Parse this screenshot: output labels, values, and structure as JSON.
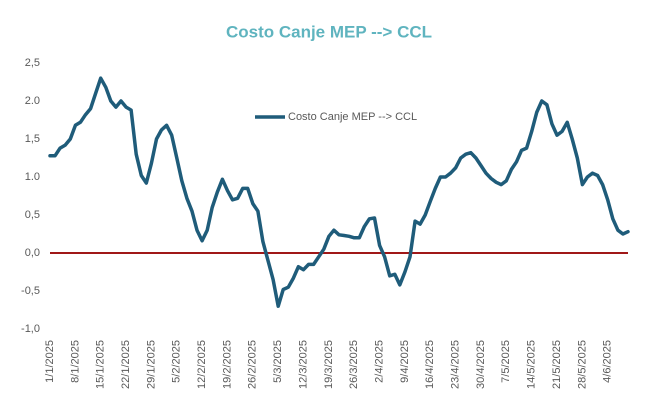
{
  "chart_data": {
    "type": "line",
    "title": "Costo Canje MEP --> CCL",
    "categories": [
      "1/1/2025",
      null,
      null,
      null,
      null,
      "8/1/2025",
      null,
      null,
      null,
      null,
      "15/1/2025",
      null,
      null,
      null,
      null,
      "22/1/2025",
      null,
      null,
      null,
      null,
      "29/1/2025",
      null,
      null,
      null,
      null,
      "5/2/2025",
      null,
      null,
      null,
      null,
      "12/2/2025",
      null,
      null,
      null,
      null,
      "19/2/2025",
      null,
      null,
      null,
      null,
      "26/2/2025",
      null,
      null,
      null,
      null,
      "5/3/2025",
      null,
      null,
      null,
      null,
      "12/3/2025",
      null,
      null,
      null,
      null,
      "19/3/2025",
      null,
      null,
      null,
      null,
      "26/3/2025",
      null,
      null,
      null,
      null,
      "2/4/2025",
      null,
      null,
      null,
      null,
      "9/4/2025",
      null,
      null,
      null,
      null,
      "16/4/2025",
      null,
      null,
      null,
      null,
      "23/4/2025",
      null,
      null,
      null,
      null,
      "30/4/2025",
      null,
      null,
      null,
      null,
      "7/5/2025",
      null,
      null,
      null,
      null,
      "14/5/2025",
      null,
      null,
      null,
      null,
      "21/5/2025",
      null,
      null,
      null,
      null,
      "28/5/2025",
      null,
      null,
      null,
      null,
      "4/6/2025",
      null,
      null,
      null,
      null
    ],
    "series": [
      {
        "name": "Costo Canje MEP --> CCL",
        "color": "#1f5c7a",
        "values": [
          1.28,
          1.28,
          1.38,
          1.42,
          1.5,
          1.68,
          1.72,
          1.82,
          1.9,
          2.1,
          2.3,
          2.18,
          2.0,
          1.92,
          2.0,
          1.92,
          1.88,
          1.3,
          1.02,
          0.92,
          1.18,
          1.5,
          1.62,
          1.68,
          1.55,
          1.25,
          0.95,
          0.72,
          0.55,
          0.3,
          0.16,
          0.3,
          0.6,
          0.8,
          0.97,
          0.82,
          0.7,
          0.72,
          0.85,
          0.85,
          0.65,
          0.55,
          0.15,
          -0.1,
          -0.35,
          -0.7,
          -0.48,
          -0.45,
          -0.33,
          -0.18,
          -0.22,
          -0.15,
          -0.15,
          -0.05,
          0.05,
          0.22,
          0.3,
          0.24,
          0.23,
          0.22,
          0.2,
          0.2,
          0.35,
          0.45,
          0.46,
          0.1,
          -0.05,
          -0.3,
          -0.28,
          -0.42,
          -0.25,
          -0.05,
          0.42,
          0.38,
          0.5,
          0.68,
          0.85,
          1.0,
          1.0,
          1.05,
          1.12,
          1.25,
          1.3,
          1.32,
          1.25,
          1.15,
          1.05,
          0.98,
          0.93,
          0.9,
          0.95,
          1.1,
          1.2,
          1.35,
          1.38,
          1.6,
          1.85,
          2.0,
          1.95,
          1.7,
          1.55,
          1.6,
          1.72,
          1.5,
          1.25,
          0.9,
          1.0,
          1.05,
          1.02,
          0.9,
          0.7,
          0.45,
          0.3,
          0.25,
          0.28
        ]
      }
    ],
    "ylim": [
      -1,
      2.5
    ],
    "yticks": [
      {
        "value": -1,
        "label": "-1,0"
      },
      {
        "value": -0.5,
        "label": "-0,5"
      },
      {
        "value": 0,
        "label": "0,0"
      },
      {
        "value": 0.5,
        "label": "0,5"
      },
      {
        "value": 1,
        "label": "1.0"
      },
      {
        "value": 1.5,
        "label": "1,5"
      },
      {
        "value": 2,
        "label": "2.0"
      },
      {
        "value": 2.5,
        "label": "2,5"
      }
    ],
    "reference_line": {
      "value": 0,
      "color": "#a01818"
    },
    "grid": false,
    "legend": "top"
  }
}
